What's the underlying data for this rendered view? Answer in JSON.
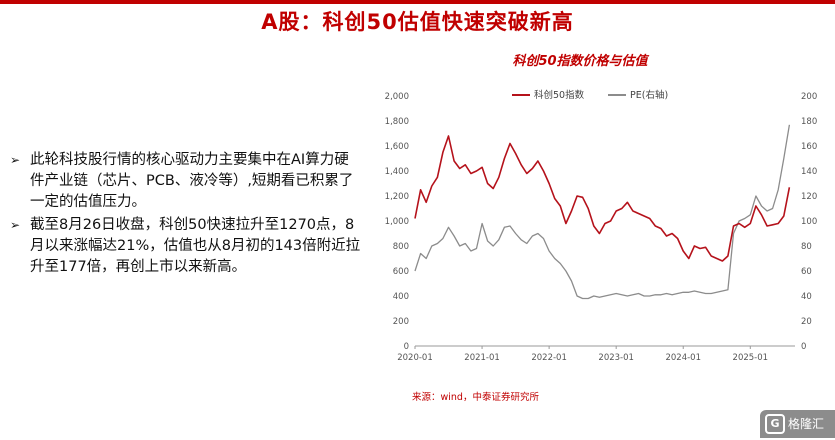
{
  "page": {
    "title": "A股：科创50估值快速突破新高",
    "bullets": [
      "此轮科技股行情的核心驱动力主要集中在AI算力硬件产业链（芯片、PCB、液冷等）,短期看已积累了一定的估值压力。",
      "截至8月26日收盘，科创50快速拉升至1270点，8月以来涨幅达21%，估值也从8月初的143倍附近拉升至177倍，再创上市以来新高。"
    ],
    "bullet_marker": "➢",
    "source": "来源：wind，中泰证券研究所",
    "logo_text": "格隆汇",
    "logo_mark": "G"
  },
  "colors": {
    "accent": "#c00000",
    "index_line": "#b5121b",
    "pe_line": "#8c8c8c"
  },
  "chart_data": {
    "type": "line",
    "title": "科创50指数价格与估值",
    "x_ticks": [
      "2020-01",
      "2021-01",
      "2022-01",
      "2023-01",
      "2024-01",
      "2025-01"
    ],
    "x_range": [
      "2020-01",
      "2025-09"
    ],
    "y_left": {
      "range": [
        0,
        2000
      ],
      "ticks": [
        "0",
        "200",
        "400",
        "600",
        "800",
        "1,000",
        "1,200",
        "1,400",
        "1,600",
        "1,800",
        "2,000"
      ]
    },
    "y_right": {
      "range": [
        0,
        200
      ],
      "ticks": [
        "0",
        "20",
        "40",
        "60",
        "80",
        "100",
        "120",
        "140",
        "160",
        "180",
        "200"
      ]
    },
    "legend_position": "top",
    "grid": false,
    "series": [
      {
        "name": "科创50指数",
        "axis": "left",
        "x": [
          "2020-01",
          "2020-02",
          "2020-03",
          "2020-04",
          "2020-05",
          "2020-06",
          "2020-07",
          "2020-08",
          "2020-09",
          "2020-10",
          "2020-11",
          "2020-12",
          "2021-01",
          "2021-02",
          "2021-03",
          "2021-04",
          "2021-05",
          "2021-06",
          "2021-07",
          "2021-08",
          "2021-09",
          "2021-10",
          "2021-11",
          "2021-12",
          "2022-01",
          "2022-02",
          "2022-03",
          "2022-04",
          "2022-05",
          "2022-06",
          "2022-07",
          "2022-08",
          "2022-09",
          "2022-10",
          "2022-11",
          "2022-12",
          "2023-01",
          "2023-02",
          "2023-03",
          "2023-04",
          "2023-05",
          "2023-06",
          "2023-07",
          "2023-08",
          "2023-09",
          "2023-10",
          "2023-11",
          "2023-12",
          "2024-01",
          "2024-02",
          "2024-03",
          "2024-04",
          "2024-05",
          "2024-06",
          "2024-07",
          "2024-08",
          "2024-09",
          "2024-10",
          "2024-11",
          "2024-12",
          "2025-01",
          "2025-02",
          "2025-03",
          "2025-04",
          "2025-05",
          "2025-06",
          "2025-07",
          "2025-08"
        ],
        "values": [
          1020,
          1250,
          1150,
          1280,
          1350,
          1550,
          1680,
          1480,
          1420,
          1450,
          1380,
          1400,
          1430,
          1300,
          1260,
          1350,
          1500,
          1620,
          1540,
          1450,
          1380,
          1420,
          1480,
          1400,
          1300,
          1180,
          1120,
          980,
          1080,
          1200,
          1190,
          1100,
          960,
          900,
          980,
          1000,
          1080,
          1100,
          1150,
          1080,
          1060,
          1040,
          1020,
          960,
          940,
          880,
          900,
          860,
          760,
          700,
          800,
          780,
          790,
          720,
          700,
          680,
          720,
          960,
          980,
          950,
          980,
          1120,
          1050,
          960,
          970,
          980,
          1040,
          1270
        ]
      },
      {
        "name": "PE(右轴)",
        "axis": "right",
        "x": [
          "2020-01",
          "2020-02",
          "2020-03",
          "2020-04",
          "2020-05",
          "2020-06",
          "2020-07",
          "2020-08",
          "2020-09",
          "2020-10",
          "2020-11",
          "2020-12",
          "2021-01",
          "2021-02",
          "2021-03",
          "2021-04",
          "2021-05",
          "2021-06",
          "2021-07",
          "2021-08",
          "2021-09",
          "2021-10",
          "2021-11",
          "2021-12",
          "2022-01",
          "2022-02",
          "2022-03",
          "2022-04",
          "2022-05",
          "2022-06",
          "2022-07",
          "2022-08",
          "2022-09",
          "2022-10",
          "2022-11",
          "2022-12",
          "2023-01",
          "2023-02",
          "2023-03",
          "2023-04",
          "2023-05",
          "2023-06",
          "2023-07",
          "2023-08",
          "2023-09",
          "2023-10",
          "2023-11",
          "2023-12",
          "2024-01",
          "2024-02",
          "2024-03",
          "2024-04",
          "2024-05",
          "2024-06",
          "2024-07",
          "2024-08",
          "2024-09",
          "2024-10",
          "2024-11",
          "2024-12",
          "2025-01",
          "2025-02",
          "2025-03",
          "2025-04",
          "2025-05",
          "2025-06",
          "2025-07",
          "2025-08"
        ],
        "values": [
          60,
          74,
          70,
          80,
          82,
          86,
          95,
          88,
          80,
          82,
          76,
          78,
          98,
          84,
          80,
          85,
          95,
          96,
          90,
          85,
          82,
          88,
          90,
          86,
          76,
          70,
          66,
          60,
          52,
          40,
          38,
          38,
          40,
          39,
          40,
          41,
          42,
          41,
          40,
          41,
          42,
          40,
          40,
          41,
          41,
          42,
          41,
          42,
          43,
          43,
          44,
          43,
          42,
          42,
          43,
          44,
          45,
          90,
          100,
          102,
          105,
          120,
          112,
          108,
          110,
          125,
          150,
          177
        ]
      }
    ]
  }
}
